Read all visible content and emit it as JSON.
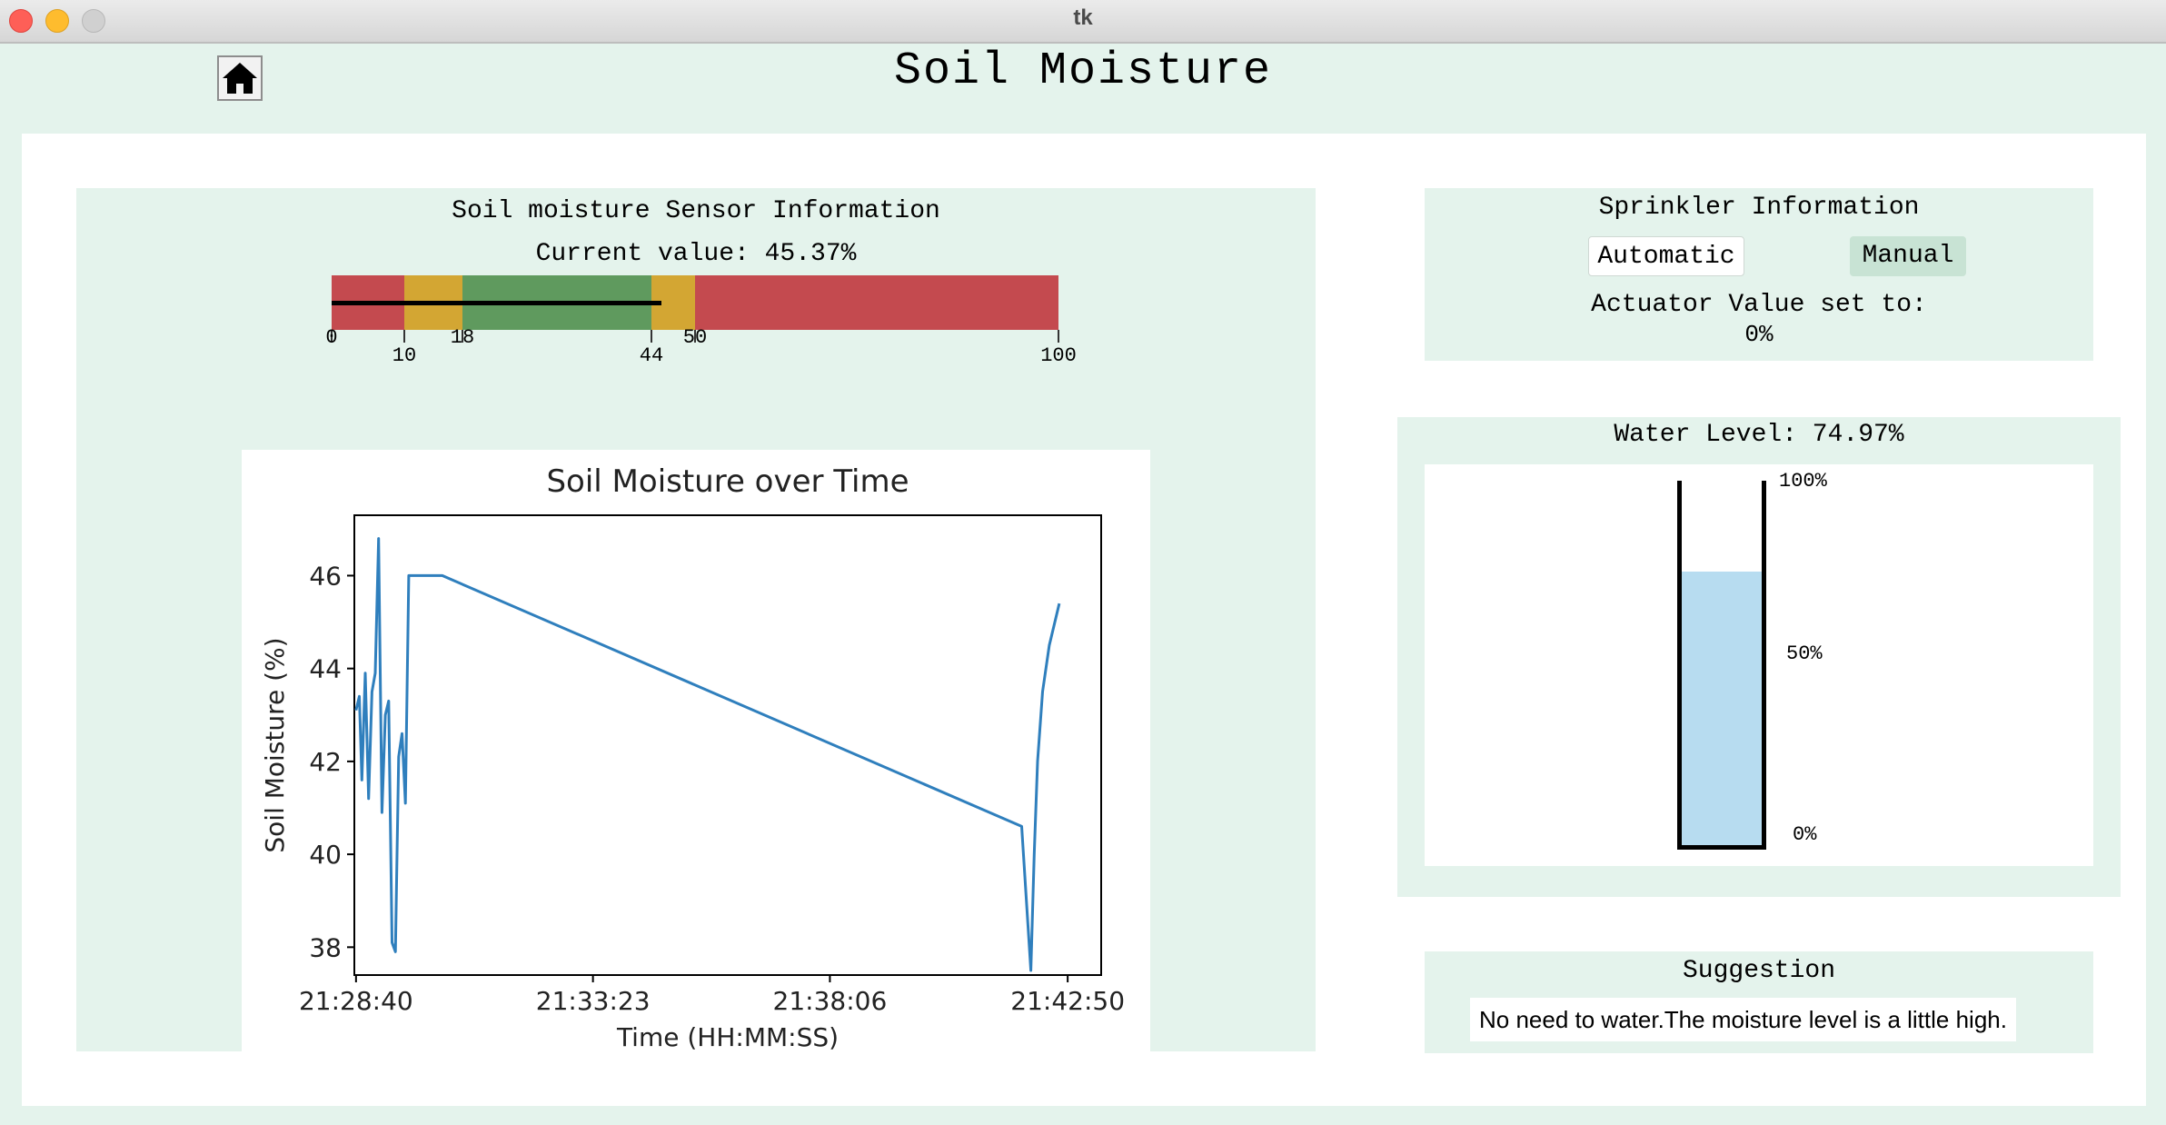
{
  "window": {
    "title": "tk"
  },
  "header": {
    "title": "Soil Moisture",
    "home_icon": "home-icon"
  },
  "sensor": {
    "heading": "Soil moisture Sensor Information",
    "current_value_text": "Current value: 45.37%",
    "current_value": 45.37,
    "bar": {
      "min": 0,
      "max": 100,
      "segments": [
        {
          "from": 0,
          "to": 10,
          "color": "#c44a4f"
        },
        {
          "from": 10,
          "to": 18,
          "color": "#d3a633"
        },
        {
          "from": 18,
          "to": 44,
          "color": "#5f9a5e"
        },
        {
          "from": 44,
          "to": 50,
          "color": "#d3a633"
        },
        {
          "from": 50,
          "to": 100,
          "color": "#c44a4f"
        }
      ],
      "tick_labels": [
        "0",
        "10",
        "18",
        "44",
        "50",
        "100"
      ]
    }
  },
  "chart_data": {
    "type": "line",
    "title": "Soil Moisture over Time",
    "xlabel": "Time (HH:MM:SS)",
    "ylabel": "Soil Moisture (%)",
    "xticks": [
      "21:28:40",
      "21:33:23",
      "21:38:06",
      "21:42:50"
    ],
    "yticks": [
      38,
      40,
      42,
      44,
      46
    ],
    "xlim": [
      "21:28:38",
      "21:43:30"
    ],
    "ylim": [
      37.4,
      47.3
    ],
    "series": [
      {
        "color": "#2f7fbd",
        "x": [
          "21:28:40",
          "21:28:44",
          "21:28:47",
          "21:28:51",
          "21:28:55",
          "21:28:59",
          "21:29:03",
          "21:29:07",
          "21:29:11",
          "21:29:15",
          "21:29:19",
          "21:29:23",
          "21:29:27",
          "21:29:31",
          "21:29:35",
          "21:29:39",
          "21:29:43",
          "21:29:47",
          "21:29:51",
          "21:29:55",
          "21:29:59",
          "21:30:03",
          "21:30:07",
          "21:30:11",
          "21:30:15",
          "21:30:19",
          "21:30:23",
          "21:41:55",
          "21:42:06",
          "21:42:10",
          "21:42:14",
          "21:42:20",
          "21:42:28",
          "21:42:40"
        ],
        "values": [
          43.1,
          43.4,
          41.6,
          43.9,
          41.2,
          43.5,
          43.9,
          46.8,
          40.9,
          43.0,
          43.3,
          38.1,
          37.9,
          42.1,
          42.6,
          41.1,
          46.0,
          46.0,
          46.0,
          46.0,
          46.0,
          46.0,
          46.0,
          46.0,
          46.0,
          46.0,
          46.0,
          40.6,
          37.5,
          40.0,
          42.0,
          43.5,
          44.5,
          45.4
        ]
      }
    ],
    "grid": false
  },
  "sprinkler": {
    "heading": "Sprinkler Information",
    "automatic_label": "Automatic",
    "manual_label": "Manual",
    "actuator_label": "Actuator Value set to:",
    "actuator_value": "0%"
  },
  "water": {
    "heading": "Water Level: 74.97%",
    "level": 74.97,
    "labels": {
      "top": "100%",
      "mid": "50%",
      "bottom": "0%"
    }
  },
  "suggestion": {
    "heading": "Suggestion",
    "text": "No need to water.The moisture level is a little high."
  }
}
